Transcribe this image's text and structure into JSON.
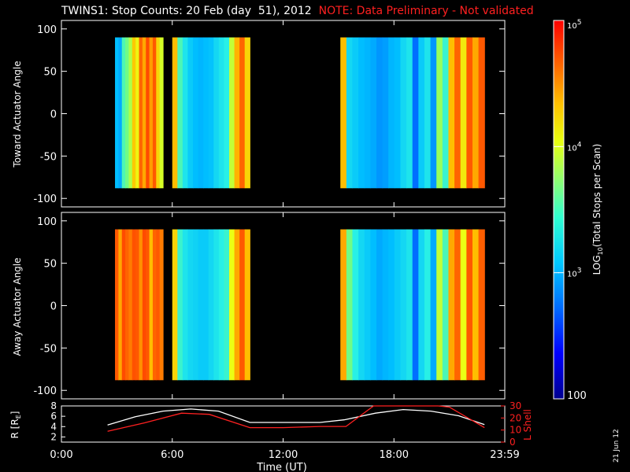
{
  "title": "TWINS1: Stop Counts: 20 Feb (day  51), 2012",
  "note": "NOTE: Data Preliminary - Not validated",
  "date_stamp": "21 Jun 12",
  "colors": {
    "background": "#000000",
    "note": "#ff2020",
    "axes": "#ffffff",
    "lshell": "#ff2020"
  },
  "chart_data": [
    {
      "type": "heatmap",
      "panel": "toward",
      "ylabel": "Toward Actuator Angle",
      "yticks": [
        100,
        50,
        0,
        -50,
        -100
      ],
      "ylim": [
        -110,
        110
      ],
      "xlim": [
        0,
        24
      ],
      "data_y_range": [
        -88,
        90
      ],
      "segments": [
        {
          "start": 2.9,
          "end": 5.5,
          "profile": [
            2.8,
            2.75,
            3.1,
            3.2,
            3.35,
            3.75,
            3.55,
            4.2,
            3.9,
            4.4,
            3.95,
            4.3,
            3.7,
            3.45
          ]
        },
        {
          "start": 6.0,
          "end": 10.2,
          "profile": [
            3.8,
            3.1,
            2.95,
            2.85,
            2.8,
            2.78,
            2.8,
            2.82,
            2.9,
            2.95,
            3.0,
            3.4,
            3.85,
            4.2,
            3.7
          ]
        },
        {
          "start": 15.1,
          "end": 22.9,
          "profile": [
            3.8,
            2.9,
            2.85,
            2.8,
            2.78,
            2.75,
            2.7,
            2.72,
            2.78,
            2.8,
            2.9,
            2.95,
            2.6,
            2.85,
            2.95,
            2.7,
            3.3,
            3.05,
            3.8,
            4.2,
            3.6,
            4.3,
            3.9,
            4.3
          ]
        }
      ]
    },
    {
      "type": "heatmap",
      "panel": "away",
      "ylabel": "Away Actuator Angle",
      "yticks": [
        100,
        50,
        0,
        -50,
        -100
      ],
      "ylim": [
        -110,
        110
      ],
      "xlim": [
        0,
        24
      ],
      "data_y_range": [
        -88,
        90
      ],
      "segments": [
        {
          "start": 2.9,
          "end": 5.5,
          "profile": [
            4.3,
            3.9,
            4.4,
            4.2,
            4.1,
            4.35,
            4.3,
            4.0,
            4.4,
            4.3,
            3.8,
            4.2,
            4.3,
            4.1
          ]
        },
        {
          "start": 6.0,
          "end": 10.2,
          "profile": [
            3.7,
            3.05,
            2.95,
            2.9,
            2.88,
            2.85,
            2.85,
            2.9,
            2.95,
            3.0,
            3.05,
            3.5,
            3.9,
            4.3,
            3.8
          ]
        },
        {
          "start": 15.1,
          "end": 22.9,
          "profile": [
            3.9,
            3.2,
            3.0,
            2.9,
            2.85,
            2.8,
            2.75,
            2.78,
            2.8,
            2.85,
            2.9,
            2.95,
            2.6,
            2.9,
            3.0,
            2.75,
            3.4,
            3.1,
            3.9,
            4.2,
            3.5,
            4.3,
            3.8,
            4.25
          ]
        }
      ]
    },
    {
      "type": "line",
      "panel": "orbit",
      "xlabel": "Time (UT)",
      "xticks": [
        "0:00",
        "6:00",
        "12:00",
        "18:00",
        "23:59"
      ],
      "xtick_values": [
        0,
        6,
        12,
        18,
        24
      ],
      "xlim": [
        0,
        24
      ],
      "ylabel_left": "R [R",
      "ylabel_left_sub": "E",
      "ylabel_left_close": "]",
      "left_yticks": [
        "2",
        "4",
        "6",
        "8"
      ],
      "left_ylim": [
        1,
        8
      ],
      "ylabel_right": "L Shell",
      "right_yticks": [
        "0",
        "10",
        "20",
        "30"
      ],
      "right_ylim": [
        0,
        30
      ],
      "series": [
        {
          "axis": "left",
          "color": "#ffffff",
          "x": [
            2.5,
            4,
            5.5,
            7,
            8.5,
            10.2,
            12,
            14,
            15.3,
            17,
            18.5,
            20,
            21.5,
            22.9
          ],
          "y": [
            4.3,
            5.9,
            7.0,
            7.4,
            7.0,
            4.8,
            4.8,
            4.8,
            5.3,
            6.6,
            7.3,
            7.0,
            6.1,
            4.4
          ]
        },
        {
          "axis": "right",
          "color": "#ff2020",
          "x": [
            2.5,
            4.5,
            6.5,
            8,
            10.2,
            12,
            14,
            15.4,
            16.9,
            17.6,
            20.4,
            21,
            22.9
          ],
          "y": [
            9,
            16,
            24,
            23,
            12,
            12,
            13,
            13,
            30,
            33,
            33,
            29,
            12
          ]
        }
      ]
    },
    {
      "type": "colorbar",
      "label_main": "LOG",
      "label_sub": "10",
      "label_rest": "(Total Stops per Scan)",
      "scale": "log",
      "range": [
        2,
        5
      ],
      "ticks": [
        {
          "value": 5,
          "label": "10",
          "sup": "5"
        },
        {
          "value": 4,
          "label": "10",
          "sup": "4"
        },
        {
          "value": 3,
          "label": "10",
          "sup": "3"
        },
        {
          "value": 2,
          "label": "100",
          "sup": ""
        }
      ]
    }
  ]
}
